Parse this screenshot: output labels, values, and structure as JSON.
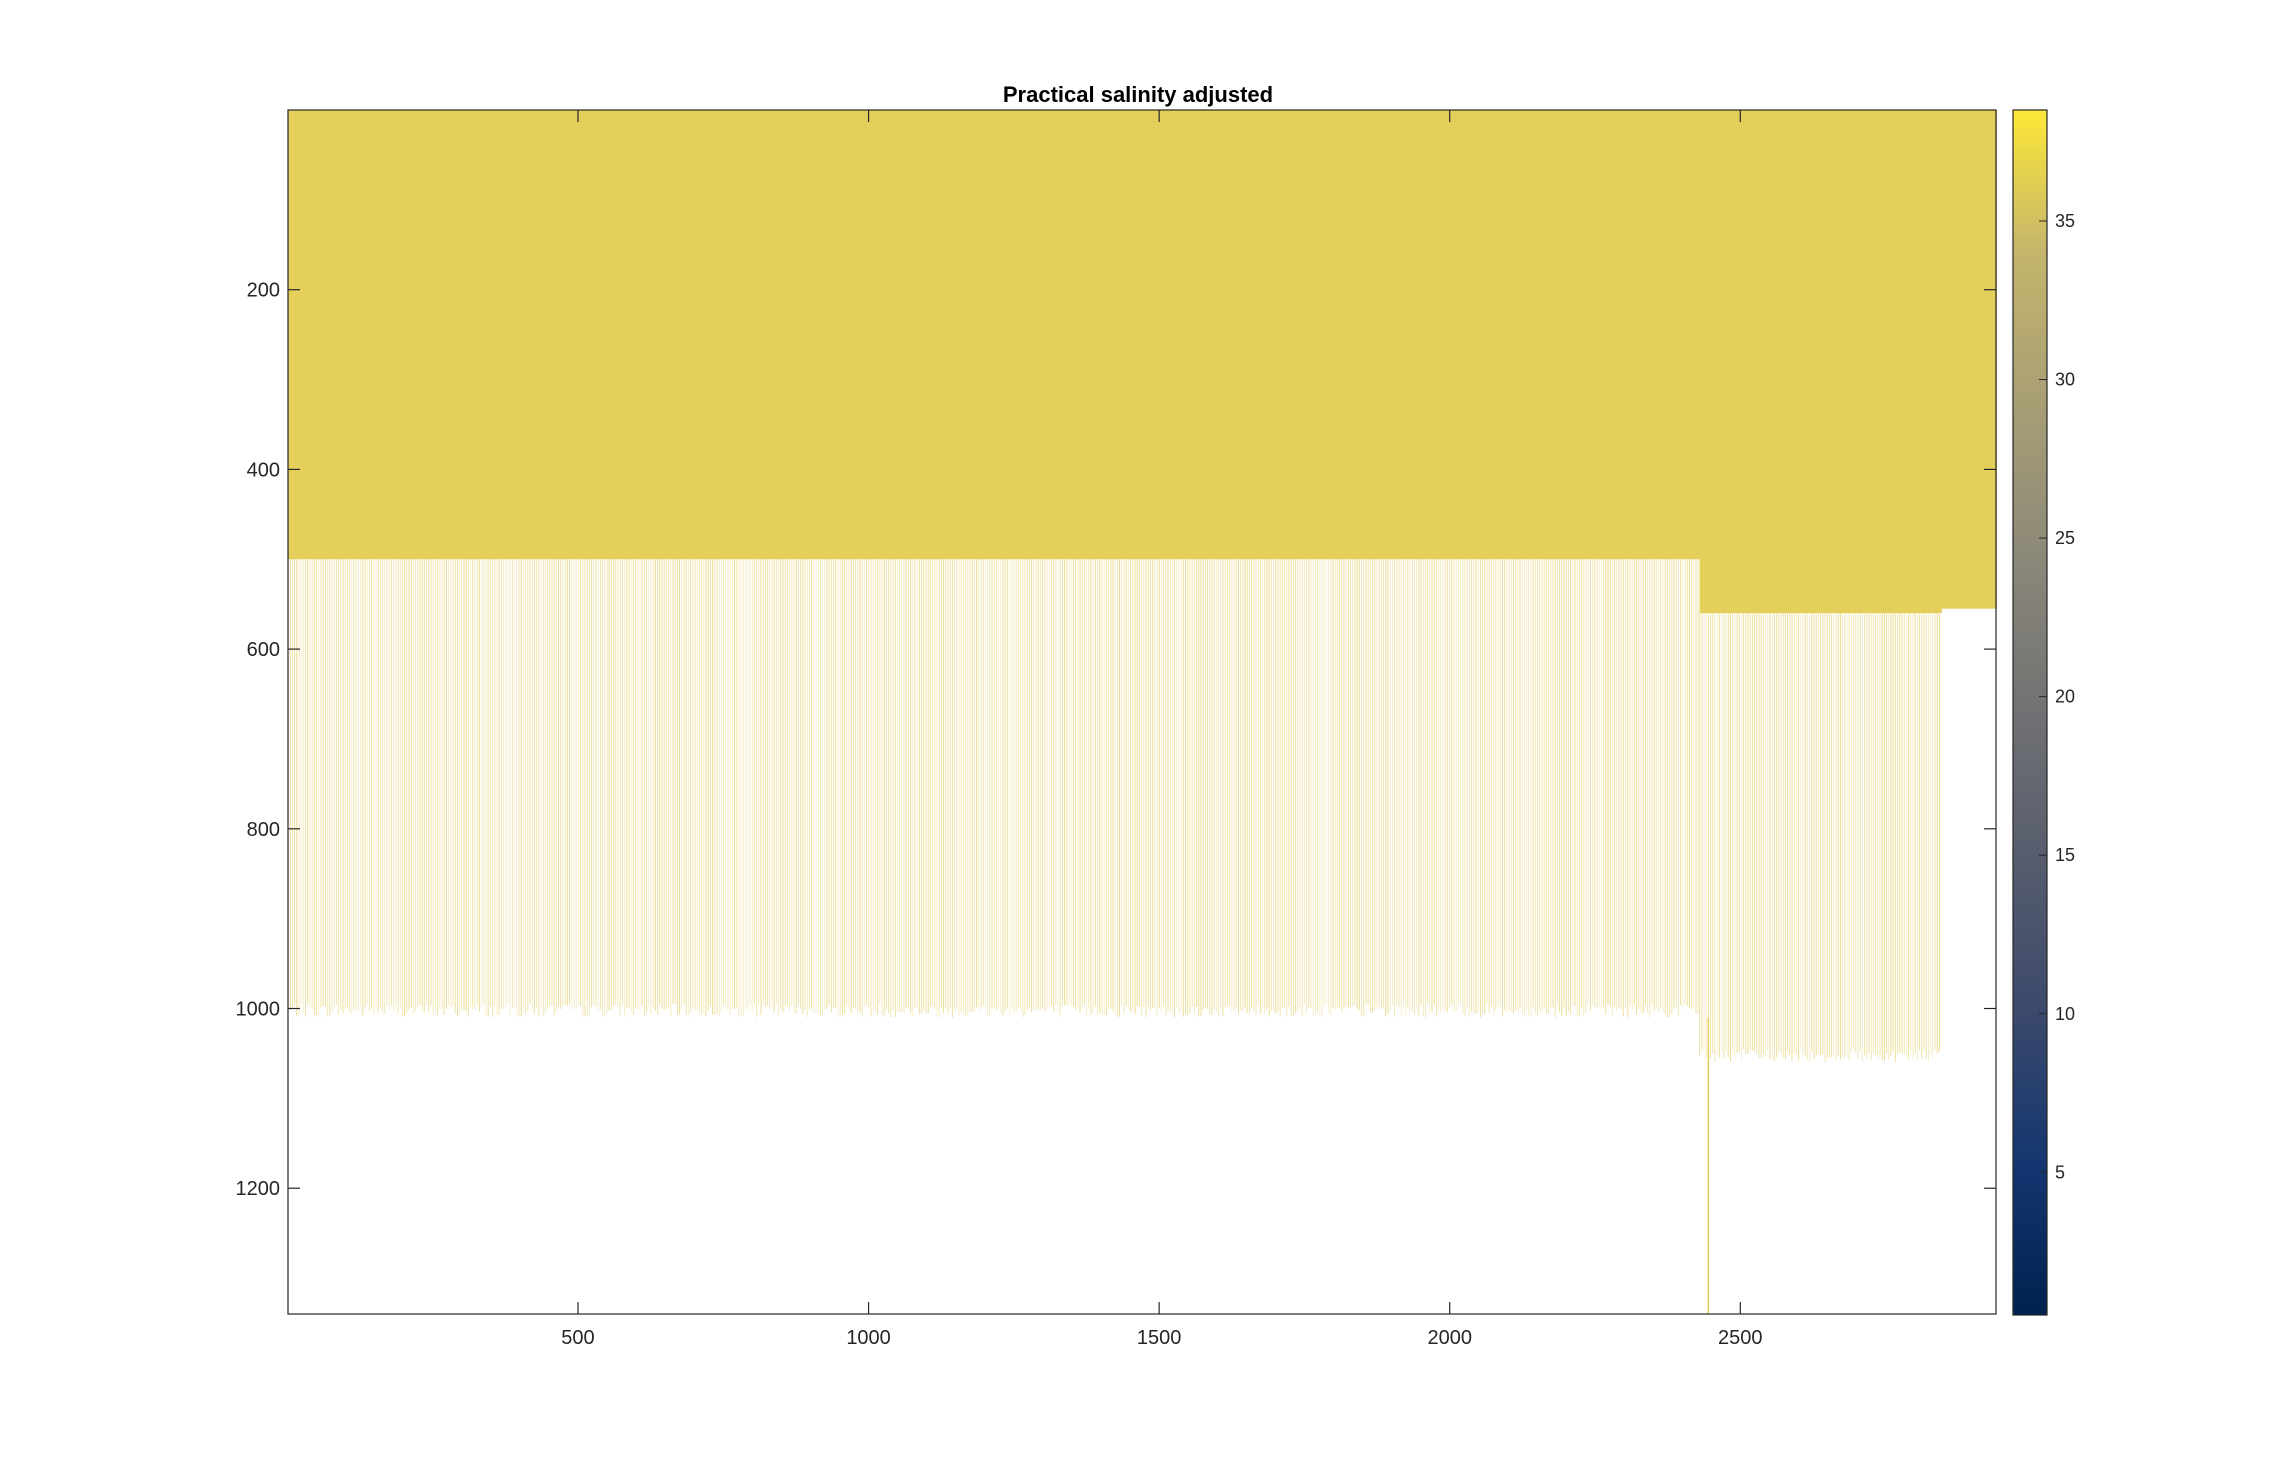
{
  "chart_data": {
    "type": "heatmap",
    "title": "Practical salinity adjusted",
    "xlabel": "",
    "ylabel": "",
    "xlim": [
      1,
      2940
    ],
    "ylim": [
      0,
      1340
    ],
    "y_reversed": true,
    "x_ticks": [
      500,
      1000,
      1500,
      2000,
      2500
    ],
    "y_ticks": [
      200,
      400,
      600,
      800,
      1000,
      1200
    ],
    "colorbar": {
      "colormap": "cividis",
      "range": [
        0.5,
        38.5
      ],
      "ticks": [
        5,
        10,
        15,
        20,
        25,
        30,
        35
      ]
    },
    "profile_summary": {
      "num_profiles": 2940,
      "typical_surface_salinity": 35.5,
      "typical_deep_salinity": 34.9,
      "sampled_depth_ranges": [
        {
          "from_profile": 1,
          "to_profile": 2430,
          "dense_to_depth": 500,
          "sparse_to_depth": 1010
        },
        {
          "from_profile": 2430,
          "to_profile": 2845,
          "dense_to_depth": 560,
          "sparse_to_depth": 1060
        },
        {
          "from_profile": 2845,
          "to_profile": 2940,
          "dense_to_depth": 555,
          "sparse_to_depth": 555
        }
      ],
      "deepest_profile": {
        "profile": 2445,
        "depth": 1340
      }
    }
  }
}
